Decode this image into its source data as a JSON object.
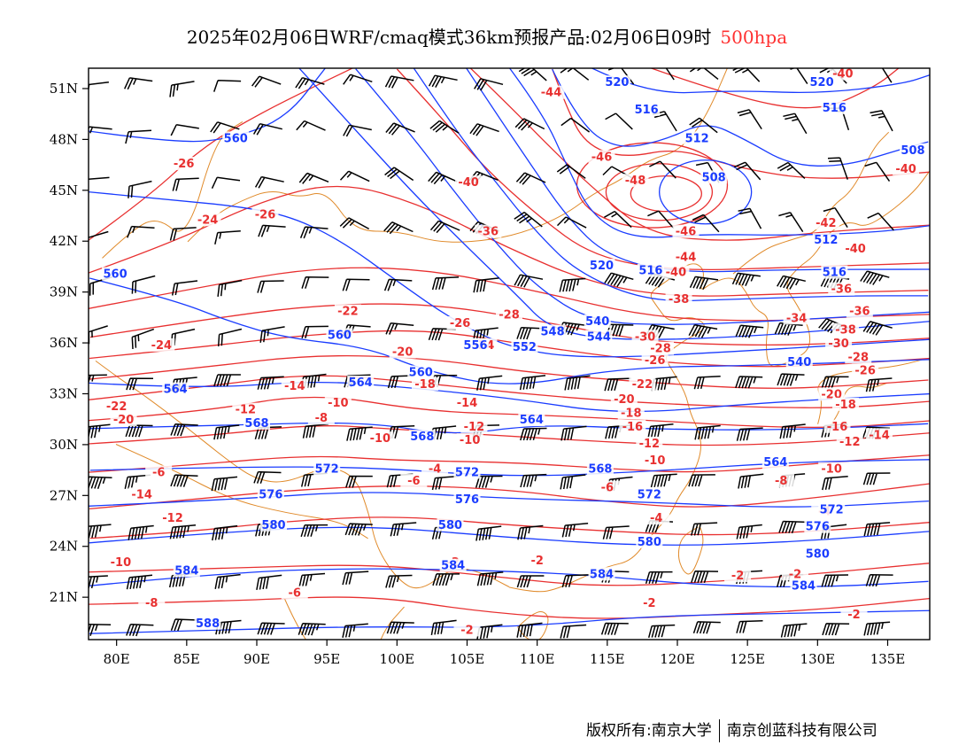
{
  "title": {
    "main": "2025年02月06日WRF/cmaq模式36km预报产品:02月06日09时",
    "level": "500hpa",
    "level_color": "#ff3030"
  },
  "map": {
    "lon_ticks": [
      "80E",
      "85E",
      "90E",
      "95E",
      "100E",
      "105E",
      "110E",
      "115E",
      "120E",
      "125E",
      "130E",
      "135E"
    ],
    "lat_ticks": [
      "21N",
      "24N",
      "27N",
      "30N",
      "33N",
      "36N",
      "39N",
      "42N",
      "45N",
      "48N",
      "51N"
    ],
    "lon_range": [
      78,
      138
    ],
    "lat_range": [
      18.5,
      52.2
    ],
    "height_color": "#1a3cff",
    "temperature_color": "#e83030",
    "coast_color": "#e08a2a",
    "wind_color": "#000000"
  },
  "height_labels": [
    {
      "text": "520",
      "lon": 115.7,
      "lat": 51.3
    },
    {
      "text": "520",
      "lon": 130.3,
      "lat": 51.3
    },
    {
      "text": "516",
      "lon": 117.8,
      "lat": 49.7
    },
    {
      "text": "516",
      "lon": 131.2,
      "lat": 49.8
    },
    {
      "text": "560",
      "lon": 88.5,
      "lat": 48.0
    },
    {
      "text": "512",
      "lon": 121.4,
      "lat": 48.0
    },
    {
      "text": "508",
      "lon": 136.8,
      "lat": 47.3
    },
    {
      "text": "508",
      "lon": 122.6,
      "lat": 45.7
    },
    {
      "text": "512",
      "lon": 130.6,
      "lat": 42.0
    },
    {
      "text": "520",
      "lon": 114.6,
      "lat": 40.5
    },
    {
      "text": "516",
      "lon": 118.1,
      "lat": 40.2
    },
    {
      "text": "516",
      "lon": 131.2,
      "lat": 40.1
    },
    {
      "text": "560",
      "lon": 79.9,
      "lat": 40.0
    },
    {
      "text": "540",
      "lon": 114.3,
      "lat": 37.2
    },
    {
      "text": "544",
      "lon": 114.4,
      "lat": 36.3
    },
    {
      "text": "548",
      "lon": 111.1,
      "lat": 36.6
    },
    {
      "text": "552",
      "lon": 109.1,
      "lat": 35.7
    },
    {
      "text": "556",
      "lon": 105.6,
      "lat": 35.8
    },
    {
      "text": "560",
      "lon": 95.9,
      "lat": 36.4
    },
    {
      "text": "560",
      "lon": 101.7,
      "lat": 34.2
    },
    {
      "text": "540",
      "lon": 128.7,
      "lat": 34.8
    },
    {
      "text": "564",
      "lon": 84.2,
      "lat": 33.2
    },
    {
      "text": "564",
      "lon": 97.4,
      "lat": 33.6
    },
    {
      "text": "568",
      "lon": 90.0,
      "lat": 31.2
    },
    {
      "text": "564",
      "lon": 109.6,
      "lat": 31.4
    },
    {
      "text": "568",
      "lon": 101.8,
      "lat": 30.4
    },
    {
      "text": "572",
      "lon": 95.0,
      "lat": 28.5
    },
    {
      "text": "572",
      "lon": 105.0,
      "lat": 28.3
    },
    {
      "text": "568",
      "lon": 114.5,
      "lat": 28.5
    },
    {
      "text": "564",
      "lon": 127.0,
      "lat": 28.9
    },
    {
      "text": "576",
      "lon": 91.0,
      "lat": 27.0
    },
    {
      "text": "576",
      "lon": 105.0,
      "lat": 26.7
    },
    {
      "text": "572",
      "lon": 118.0,
      "lat": 27.0
    },
    {
      "text": "572",
      "lon": 131.0,
      "lat": 26.1
    },
    {
      "text": "580",
      "lon": 91.2,
      "lat": 25.2
    },
    {
      "text": "580",
      "lon": 103.8,
      "lat": 25.2
    },
    {
      "text": "576",
      "lon": 130.0,
      "lat": 25.1
    },
    {
      "text": "580",
      "lon": 118.0,
      "lat": 24.2
    },
    {
      "text": "580",
      "lon": 130.0,
      "lat": 23.5
    },
    {
      "text": "584",
      "lon": 85.0,
      "lat": 22.5
    },
    {
      "text": "584",
      "lon": 104.0,
      "lat": 22.8
    },
    {
      "text": "584",
      "lon": 114.6,
      "lat": 22.3
    },
    {
      "text": "584",
      "lon": 129.0,
      "lat": 21.6
    },
    {
      "text": "588",
      "lon": 86.5,
      "lat": 19.4
    }
  ],
  "temperature_labels": [
    {
      "text": "-44",
      "lon": 111.0,
      "lat": 50.7
    },
    {
      "text": "-40",
      "lon": 131.8,
      "lat": 51.8
    },
    {
      "text": "-40",
      "lon": 136.3,
      "lat": 46.2
    },
    {
      "text": "-26",
      "lon": 84.8,
      "lat": 46.5
    },
    {
      "text": "-46",
      "lon": 114.6,
      "lat": 46.9
    },
    {
      "text": "-48",
      "lon": 117.0,
      "lat": 45.5
    },
    {
      "text": "-40",
      "lon": 105.1,
      "lat": 45.4
    },
    {
      "text": "-24",
      "lon": 86.5,
      "lat": 43.2
    },
    {
      "text": "-26",
      "lon": 90.6,
      "lat": 43.5
    },
    {
      "text": "-46",
      "lon": 120.6,
      "lat": 42.5
    },
    {
      "text": "-42",
      "lon": 130.6,
      "lat": 43.0
    },
    {
      "text": "-40",
      "lon": 132.7,
      "lat": 41.5
    },
    {
      "text": "-36",
      "lon": 106.5,
      "lat": 42.5
    },
    {
      "text": "-44",
      "lon": 120.6,
      "lat": 41.0
    },
    {
      "text": "-40",
      "lon": 119.9,
      "lat": 40.1
    },
    {
      "text": "-38",
      "lon": 120.1,
      "lat": 38.5
    },
    {
      "text": "-36",
      "lon": 131.7,
      "lat": 39.1
    },
    {
      "text": "-36",
      "lon": 133.0,
      "lat": 37.8
    },
    {
      "text": "-34",
      "lon": 128.5,
      "lat": 37.4
    },
    {
      "text": "-38",
      "lon": 132.0,
      "lat": 36.7
    },
    {
      "text": "-30",
      "lon": 117.7,
      "lat": 36.3
    },
    {
      "text": "-30",
      "lon": 131.5,
      "lat": 35.9
    },
    {
      "text": "-28",
      "lon": 118.8,
      "lat": 35.6
    },
    {
      "text": "-28",
      "lon": 108.0,
      "lat": 37.6
    },
    {
      "text": "-28",
      "lon": 132.9,
      "lat": 35.1
    },
    {
      "text": "-26",
      "lon": 104.5,
      "lat": 37.1
    },
    {
      "text": "-26",
      "lon": 118.4,
      "lat": 34.9
    },
    {
      "text": "-26",
      "lon": 133.4,
      "lat": 34.3
    },
    {
      "text": "-24",
      "lon": 83.2,
      "lat": 35.8
    },
    {
      "text": "-24",
      "lon": 106.2,
      "lat": 35.8
    },
    {
      "text": "-22",
      "lon": 96.5,
      "lat": 37.8
    },
    {
      "text": "-22",
      "lon": 117.5,
      "lat": 33.5
    },
    {
      "text": "-22",
      "lon": 80.0,
      "lat": 32.2
    },
    {
      "text": "-20",
      "lon": 100.4,
      "lat": 35.4
    },
    {
      "text": "-20",
      "lon": 116.2,
      "lat": 32.6
    },
    {
      "text": "-20",
      "lon": 131.0,
      "lat": 32.9
    },
    {
      "text": "-20",
      "lon": 80.5,
      "lat": 31.4
    },
    {
      "text": "-18",
      "lon": 102.0,
      "lat": 33.5
    },
    {
      "text": "-18",
      "lon": 116.7,
      "lat": 31.8
    },
    {
      "text": "-18",
      "lon": 132.0,
      "lat": 32.3
    },
    {
      "text": "-16",
      "lon": 116.8,
      "lat": 31.0
    },
    {
      "text": "-16",
      "lon": 131.4,
      "lat": 31.0
    },
    {
      "text": "-14",
      "lon": 92.7,
      "lat": 33.4
    },
    {
      "text": "-14",
      "lon": 105.0,
      "lat": 32.4
    },
    {
      "text": "-14",
      "lon": 134.4,
      "lat": 30.5
    },
    {
      "text": "-12",
      "lon": 89.2,
      "lat": 32.0
    },
    {
      "text": "-12",
      "lon": 105.5,
      "lat": 31.0
    },
    {
      "text": "-12",
      "lon": 118.0,
      "lat": 30.0
    },
    {
      "text": "-12",
      "lon": 132.3,
      "lat": 30.1
    },
    {
      "text": "-10",
      "lon": 95.8,
      "lat": 32.4
    },
    {
      "text": "-10",
      "lon": 98.8,
      "lat": 30.3
    },
    {
      "text": "-10",
      "lon": 105.2,
      "lat": 30.2
    },
    {
      "text": "-10",
      "lon": 118.4,
      "lat": 29.0
    },
    {
      "text": "-10",
      "lon": 131.0,
      "lat": 28.5
    },
    {
      "text": "-8",
      "lon": 94.6,
      "lat": 31.5
    },
    {
      "text": "-8",
      "lon": 127.4,
      "lat": 27.8
    },
    {
      "text": "-8",
      "lon": 82.5,
      "lat": 20.6
    },
    {
      "text": "-6",
      "lon": 83.0,
      "lat": 28.3
    },
    {
      "text": "-6",
      "lon": 101.2,
      "lat": 27.8
    },
    {
      "text": "-6",
      "lon": 115.0,
      "lat": 27.4
    },
    {
      "text": "-6",
      "lon": 92.7,
      "lat": 21.2
    },
    {
      "text": "-4",
      "lon": 102.7,
      "lat": 28.5
    },
    {
      "text": "-4",
      "lon": 118.5,
      "lat": 25.6
    },
    {
      "text": "-4",
      "lon": 130.5,
      "lat": 26.0
    },
    {
      "text": "-2",
      "lon": 104.0,
      "lat": 23.0
    },
    {
      "text": "-2",
      "lon": 110.0,
      "lat": 23.1
    },
    {
      "text": "-2",
      "lon": 124.3,
      "lat": 22.2
    },
    {
      "text": "-2",
      "lon": 118.0,
      "lat": 20.6
    },
    {
      "text": "-2",
      "lon": 128.4,
      "lat": 22.3
    },
    {
      "text": "-2",
      "lon": 105.0,
      "lat": 19.0
    },
    {
      "text": "-2",
      "lon": 132.6,
      "lat": 19.9
    },
    {
      "text": "-14",
      "lon": 81.8,
      "lat": 27.0
    },
    {
      "text": "-12",
      "lon": 84.0,
      "lat": 25.6
    },
    {
      "text": "-10",
      "lon": 80.3,
      "lat": 23.0
    }
  ],
  "footer": {
    "left": "版权所有:南京大学",
    "right": "南京创蓝科技有限公司"
  }
}
